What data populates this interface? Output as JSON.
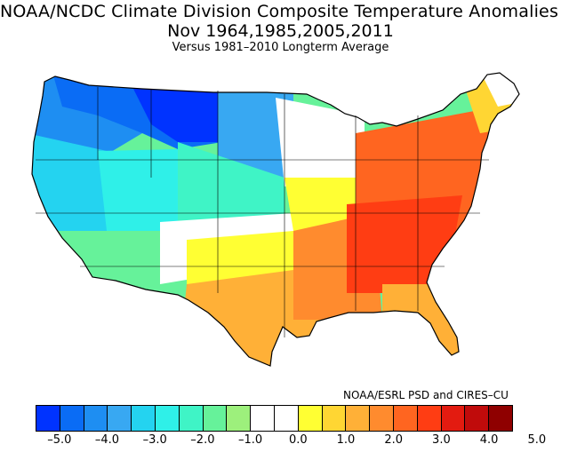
{
  "title": "NOAA/NCDC Climate Division Composite Temperature Anomalies (F)",
  "subtitle": "Nov  1964,1985,2005,2011",
  "subtitle2": "Versus 1981–2010 Longterm Average",
  "credit": "NOAA/ESRL PSD and CIRES–CU",
  "legend": {
    "colors": [
      "#0033ff",
      "#0a6cf5",
      "#1e8ef2",
      "#38a8f2",
      "#24d3f0",
      "#2ff0e8",
      "#3ff4c6",
      "#66f29a",
      "#9df07c",
      "#ffffff",
      "#ffffff",
      "#ffff33",
      "#ffd633",
      "#ffb037",
      "#ff8b2e",
      "#ff6520",
      "#ff3d13",
      "#e31b10",
      "#c00b0b",
      "#8f0000"
    ],
    "ticks": [
      "–5.0",
      "–4.0",
      "–3.0",
      "–2.0",
      "–1.0",
      "0.0",
      "1.0",
      "2.0",
      "3.0",
      "4.0",
      "5.0"
    ]
  },
  "map": {
    "regions": [
      {
        "name": "northwest",
        "anomaly": -4.5
      },
      {
        "name": "northern-rockies",
        "anomaly": -5.0
      },
      {
        "name": "northern-plains",
        "anomaly": -3.5
      },
      {
        "name": "pacific-coast",
        "anomaly": -2.5
      },
      {
        "name": "great-basin",
        "anomaly": -2.5
      },
      {
        "name": "southwest",
        "anomaly": -1.5
      },
      {
        "name": "central-rockies",
        "anomaly": -1.5
      },
      {
        "name": "central-plains",
        "anomaly": -1.0
      },
      {
        "name": "upper-midwest",
        "anomaly": 0.0
      },
      {
        "name": "southern-rockies",
        "anomaly": 1.0
      },
      {
        "name": "texas",
        "anomaly": 2.5
      },
      {
        "name": "southeast",
        "anomaly": 3.5
      },
      {
        "name": "ohio-valley",
        "anomaly": 3.5
      },
      {
        "name": "northeast",
        "anomaly": 2.5
      },
      {
        "name": "florida",
        "anomaly": 2.0
      },
      {
        "name": "new-england-north",
        "anomaly": 0.0
      }
    ]
  }
}
